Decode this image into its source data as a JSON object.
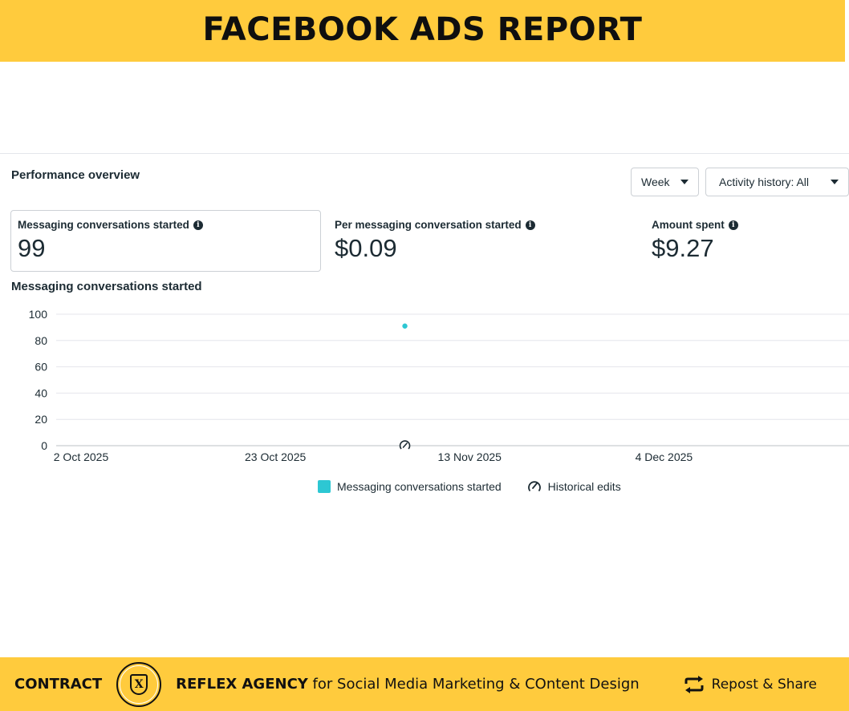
{
  "banner": {
    "title": "FACEBOOK ADS REPORT"
  },
  "overview": {
    "title": "Performance overview",
    "week_button": "Week",
    "activity_button": "Activity history: All"
  },
  "metrics": [
    {
      "label": "Messaging conversations started",
      "value": "99",
      "selected": true
    },
    {
      "label": "Per messaging conversation started",
      "value": "$0.09",
      "selected": false
    },
    {
      "label": "Amount spent",
      "value": "$9.27",
      "selected": false
    }
  ],
  "chart_title": "Messaging conversations started",
  "chart_data": {
    "type": "scatter",
    "title": "Messaging conversations started",
    "xlabel": "",
    "ylabel": "",
    "ylim": [
      0,
      100
    ],
    "yticks": [
      "0",
      "20",
      "40",
      "60",
      "80",
      "100"
    ],
    "x_ticks": [
      "2 Oct 2025",
      "23 Oct 2025",
      "13 Nov 2025",
      "4 Dec 2025"
    ],
    "x_range": [
      "2 Oct 2025",
      "24 Dec 2025"
    ],
    "series": [
      {
        "name": "Messaging conversations started",
        "color": "#2dc7d3",
        "points": [
          {
            "x": "6 Nov 2025",
            "y": 91
          }
        ]
      }
    ],
    "annotations": [
      {
        "type": "historical-edit",
        "x": "6 Nov 2025"
      }
    ],
    "grid": true,
    "legend": "bottom-center"
  },
  "legend": {
    "series_label": "Messaging conversations started",
    "edits_label": "Historical edits"
  },
  "footer": {
    "contract": "CONTRACT",
    "agency_name": "REFLEX AGENCY",
    "agency_tagline": "for Social Media Marketing & COntent Design",
    "share": "Repost & Share",
    "logo_letter": "X"
  },
  "colors": {
    "banner": "#ffcb3d",
    "series": "#2dc7d3",
    "text": "#1c2b33"
  }
}
